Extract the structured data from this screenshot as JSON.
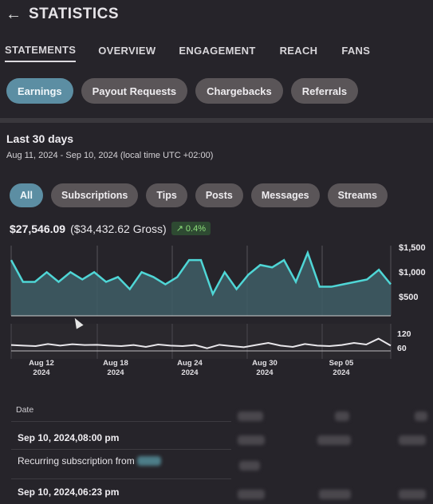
{
  "header": {
    "title": "STATISTICS"
  },
  "tabs": [
    {
      "label": "STATEMENTS",
      "active": true
    },
    {
      "label": "OVERVIEW",
      "active": false
    },
    {
      "label": "ENGAGEMENT",
      "active": false
    },
    {
      "label": "REACH",
      "active": false
    },
    {
      "label": "FANS",
      "active": false
    }
  ],
  "sub_tabs": [
    {
      "label": "Earnings",
      "active": true
    },
    {
      "label": "Payout Requests",
      "active": false
    },
    {
      "label": "Chargebacks",
      "active": false
    },
    {
      "label": "Referrals",
      "active": false
    }
  ],
  "range": {
    "title": "Last 30 days",
    "subtitle": "Aug 11, 2024 - Sep 10, 2024 (local time UTC +02:00)"
  },
  "filters": [
    {
      "label": "All",
      "active": true
    },
    {
      "label": "Subscriptions",
      "active": false
    },
    {
      "label": "Tips",
      "active": false
    },
    {
      "label": "Posts",
      "active": false
    },
    {
      "label": "Messages",
      "active": false
    },
    {
      "label": "Streams",
      "active": false
    }
  ],
  "totals": {
    "net": "$27,546.09",
    "gross": "($34,432.62 Gross)",
    "change": "0.4%",
    "change_icon": "trend-up-icon"
  },
  "colors": {
    "accent": "#5c8ea3",
    "line": "#4fd6d6",
    "positive": "#8ee07b"
  },
  "chart_data": {
    "type": "area",
    "main": {
      "y_ticks": [
        "$1,500",
        "$1,000",
        "$500"
      ],
      "values": [
        1400,
        950,
        950,
        1150,
        950,
        1150,
        1000,
        1150,
        950,
        1050,
        800,
        1150,
        1050,
        900,
        1050,
        1400,
        1400,
        700,
        1150,
        800,
        1100,
        1300,
        1250,
        1400,
        950,
        1550,
        850,
        850,
        900,
        950,
        1000,
        1200,
        900
      ]
    },
    "navigator": {
      "y_ticks": [
        "120",
        "60"
      ],
      "x_ticks": [
        {
          "day": "Aug 12",
          "year": "2024"
        },
        {
          "day": "Aug 18",
          "year": "2024"
        },
        {
          "day": "Aug 24",
          "year": "2024"
        },
        {
          "day": "Aug 30",
          "year": "2024"
        },
        {
          "day": "Sep 05",
          "year": "2024"
        }
      ],
      "values": [
        62,
        60,
        58,
        66,
        60,
        65,
        62,
        63,
        60,
        58,
        62,
        55,
        64,
        60,
        58,
        62,
        50,
        63,
        58,
        54,
        62,
        70,
        60,
        55,
        66,
        60,
        58,
        62,
        70,
        64,
        86,
        60
      ]
    }
  },
  "table": {
    "date_header": "Date",
    "rows": [
      {
        "date": "Sep 10, 2024,08:00 pm",
        "desc": "Recurring subscription from"
      },
      {
        "date": "Sep 10, 2024,06:23 pm",
        "desc": ""
      }
    ]
  }
}
